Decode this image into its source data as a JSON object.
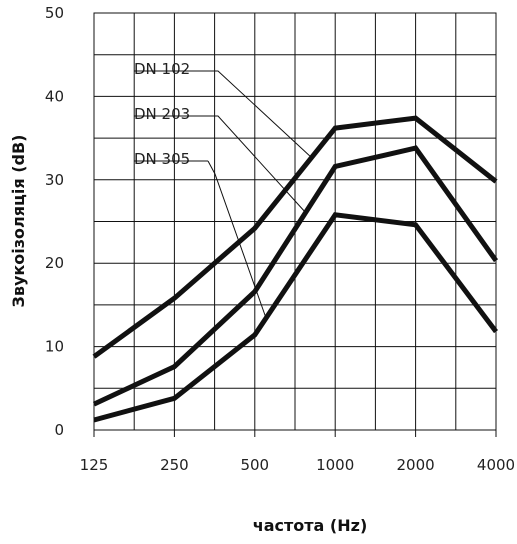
{
  "chart_data": {
    "type": "line",
    "xlabel": "частота (Hz)",
    "ylabel": "Звукоізоляція (dB)",
    "categories": [
      "125",
      "250",
      "500",
      "1000",
      "2000",
      "4000"
    ],
    "ylim": [
      0,
      50
    ],
    "yticks": [
      "0",
      "10",
      "20",
      "30",
      "40",
      "50"
    ],
    "grid": true,
    "series": [
      {
        "name": "DN 102",
        "values": [
          8.8,
          15.8,
          24.2,
          36.2,
          37.4,
          29.8
        ]
      },
      {
        "name": "DN 203",
        "values": [
          3.1,
          7.6,
          16.6,
          31.6,
          33.8,
          20.3
        ]
      },
      {
        "name": "DN 305",
        "values": [
          1.2,
          3.8,
          11.4,
          25.8,
          24.6,
          11.8
        ]
      }
    ]
  }
}
